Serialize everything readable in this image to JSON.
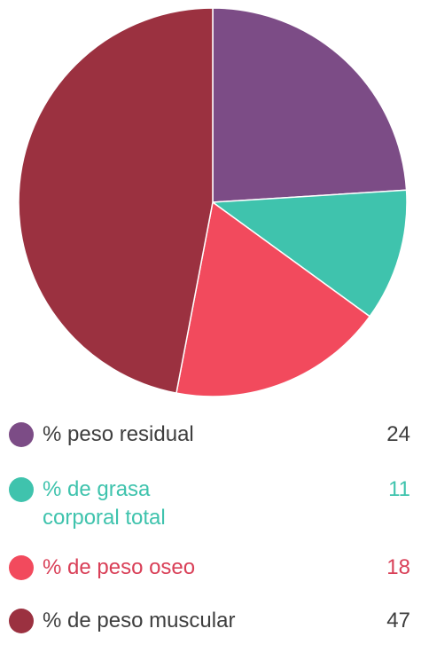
{
  "chart_data": {
    "type": "pie",
    "title": "",
    "start": "top",
    "direction": "clockwise",
    "slices": [
      {
        "label": "% peso residual",
        "value": 24,
        "color": "#7c4c86",
        "text_color": "#3e3e3e"
      },
      {
        "label": "% de grasa corporal total",
        "label_lines": [
          "% de grasa",
          "corporal total"
        ],
        "value": 11,
        "color": "#3fc3ad",
        "text_color": "#3fc3ad"
      },
      {
        "label": "% de peso oseo",
        "value": 18,
        "color": "#f24a5d",
        "text_color": "#d94058"
      },
      {
        "label": "% de peso muscular",
        "value": 47,
        "color": "#9b3140",
        "text_color": "#3e3e3e"
      }
    ],
    "legend_position": "bottom"
  }
}
